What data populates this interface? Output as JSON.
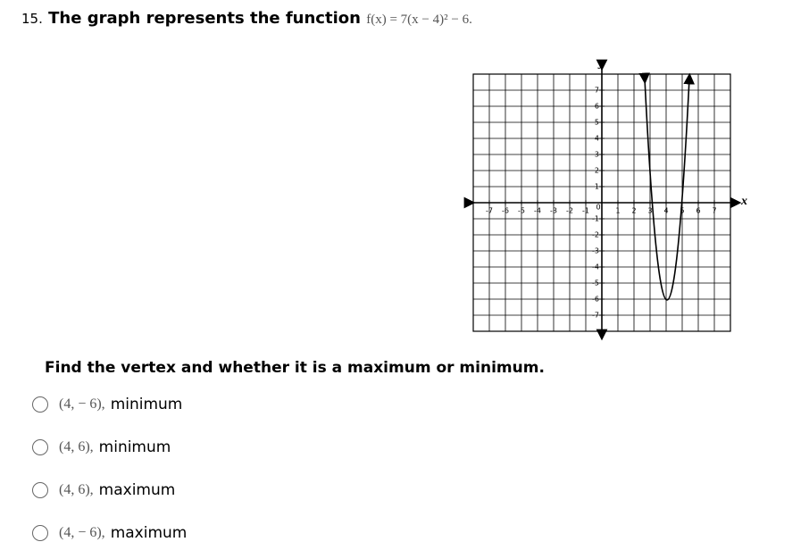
{
  "question": {
    "number": "15.",
    "text": "The graph represents the function",
    "formula": "f(x) = 7(x − 4)² − 6."
  },
  "graph": {
    "x_label": "x",
    "y_label": "y",
    "xlim": [
      -8,
      8
    ],
    "ylim": [
      -8,
      8
    ],
    "xticks": [
      -7,
      -6,
      -5,
      -4,
      -3,
      -2,
      -1,
      0,
      1,
      2,
      3,
      4,
      5,
      6,
      7
    ],
    "yticks": [
      7,
      6,
      5,
      4,
      3,
      2,
      1,
      -1,
      -2,
      -3,
      -4,
      -5,
      -6,
      -7
    ]
  },
  "prompt": "Find the vertex and whether it is a maximum or minimum.",
  "options": [
    {
      "point": "(4,  − 6),",
      "label": "minimum"
    },
    {
      "point": "(4, 6),",
      "label": "minimum"
    },
    {
      "point": "(4, 6),",
      "label": "maximum"
    },
    {
      "point": "(4,  − 6),",
      "label": "maximum"
    }
  ]
}
